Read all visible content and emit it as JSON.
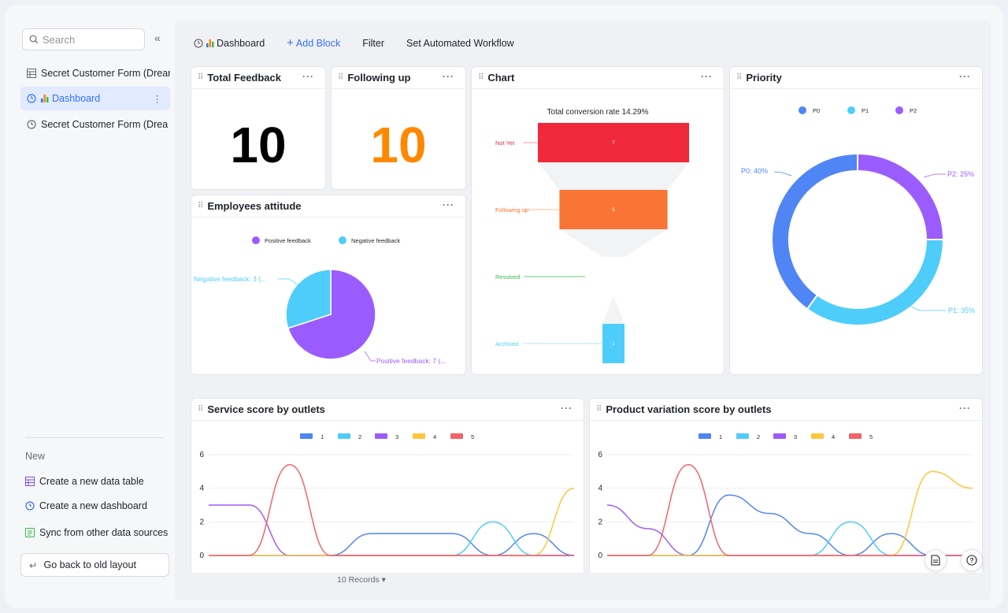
{
  "sidebar": {
    "search_placeholder": "Search",
    "collapse_icon": "«",
    "items": [
      {
        "label": "Secret Customer Form (Dream"
      },
      {
        "label": "Dashboard"
      },
      {
        "label": "Secret Customer Form (Drea"
      }
    ],
    "more": "⋮",
    "new_title": "New",
    "new_items": [
      {
        "label": "Create a new data table"
      },
      {
        "label": "Create a new dashboard"
      },
      {
        "label": "Sync from other data sources"
      }
    ],
    "old_layout": "Go back to old layout"
  },
  "toolbar": {
    "dashboard": "Dashboard",
    "add_block": "Add Block",
    "filter": "Filter",
    "workflow": "Set Automated Workflow"
  },
  "cards": {
    "total_feedback": {
      "title": "Total Feedback",
      "value": "10"
    },
    "following_up": {
      "title": "Following up",
      "value": "10"
    },
    "chart": {
      "title": "Chart"
    },
    "priority": {
      "title": "Priority"
    },
    "employees": {
      "title": "Employees attitude"
    },
    "service": {
      "title": "Service score by outlets"
    },
    "product": {
      "title": "Product variation score by outlets"
    },
    "menu": "···"
  },
  "footer": {
    "records": "10 Records ▾"
  },
  "colors": {
    "accent": "#3370ff",
    "orange": "#ff8800"
  },
  "chart_data": [
    {
      "type": "funnel",
      "title": "Total conversion rate 14.29%",
      "stages": [
        {
          "label": "Not Yet",
          "value": 7,
          "display": "7",
          "color": "#f0283c"
        },
        {
          "label": "Following up",
          "value": 5,
          "display": "5",
          "color": "#f97535"
        },
        {
          "label": "Resolved",
          "value": 0,
          "display": "",
          "color": "#35bd4b"
        },
        {
          "label": "Archived",
          "value": 1,
          "display": "1",
          "color": "#4fcdfa"
        }
      ]
    },
    {
      "type": "pie",
      "title": "Employees attitude",
      "legend": [
        "Positive feedback",
        "Negative feedback"
      ],
      "slices": [
        {
          "label": "Positive feedback: 7 (...",
          "value": 7,
          "color": "#9b5cff"
        },
        {
          "label": "Negative feedback: 3 (...",
          "value": 3,
          "color": "#4fcdfa"
        }
      ]
    },
    {
      "type": "pie",
      "title": "Priority",
      "legend": [
        "P0",
        "P1",
        "P2"
      ],
      "slices": [
        {
          "label": "P0: 40%",
          "value": 40,
          "color": "#5085f5"
        },
        {
          "label": "P1: 35%",
          "value": 35,
          "color": "#4fcdfa"
        },
        {
          "label": "P2: 25%",
          "value": 25,
          "color": "#9b5cff"
        }
      ]
    },
    {
      "type": "line",
      "title": "Service score by outlets",
      "legend": [
        "1",
        "2",
        "3",
        "4",
        "5"
      ],
      "ylim": [
        0,
        6
      ],
      "yticks": [
        "0",
        "2",
        "4",
        "6"
      ],
      "x": [
        0,
        1,
        2,
        3,
        4,
        5,
        6,
        7,
        8,
        9
      ],
      "series": [
        {
          "name": "1",
          "color": "#5085f5",
          "values": [
            0,
            0,
            0,
            0,
            1.3,
            1.3,
            1.3,
            0,
            1.3,
            0
          ]
        },
        {
          "name": "2",
          "color": "#4fcdfa",
          "values": [
            0,
            0,
            0,
            0,
            0,
            0,
            0,
            2,
            0,
            0
          ]
        },
        {
          "name": "3",
          "color": "#9b5cff",
          "values": [
            3,
            3,
            0,
            0,
            0,
            0,
            0,
            0,
            0,
            0
          ]
        },
        {
          "name": "4",
          "color": "#ffc53d",
          "values": [
            0,
            0,
            0,
            0,
            0,
            0,
            0,
            0,
            0,
            4
          ]
        },
        {
          "name": "5",
          "color": "#f4626b",
          "values": [
            0,
            0,
            5.4,
            0,
            0,
            0,
            0,
            0,
            0,
            0
          ]
        }
      ]
    },
    {
      "type": "line",
      "title": "Product variation score by outlets",
      "legend": [
        "1",
        "2",
        "3",
        "4",
        "5"
      ],
      "ylim": [
        0,
        6
      ],
      "yticks": [
        "0",
        "2",
        "4",
        "6"
      ],
      "x": [
        0,
        1,
        2,
        3,
        4,
        5,
        6,
        7,
        8,
        9
      ],
      "series": [
        {
          "name": "1",
          "color": "#5085f5",
          "values": [
            0,
            0,
            0,
            3.6,
            2.5,
            1.3,
            0,
            1.3,
            0,
            0
          ]
        },
        {
          "name": "2",
          "color": "#4fcdfa",
          "values": [
            0,
            0,
            0,
            0,
            0,
            0,
            2,
            0,
            0,
            0
          ]
        },
        {
          "name": "3",
          "color": "#9b5cff",
          "values": [
            3,
            1.6,
            0,
            0,
            0,
            0,
            0,
            0,
            0,
            0
          ]
        },
        {
          "name": "4",
          "color": "#ffc53d",
          "values": [
            0,
            0,
            0,
            0,
            0,
            0,
            0,
            0,
            5,
            4
          ]
        },
        {
          "name": "5",
          "color": "#f4626b",
          "values": [
            0,
            0,
            5.4,
            0,
            0,
            0,
            0,
            0,
            0,
            0
          ]
        }
      ]
    }
  ]
}
